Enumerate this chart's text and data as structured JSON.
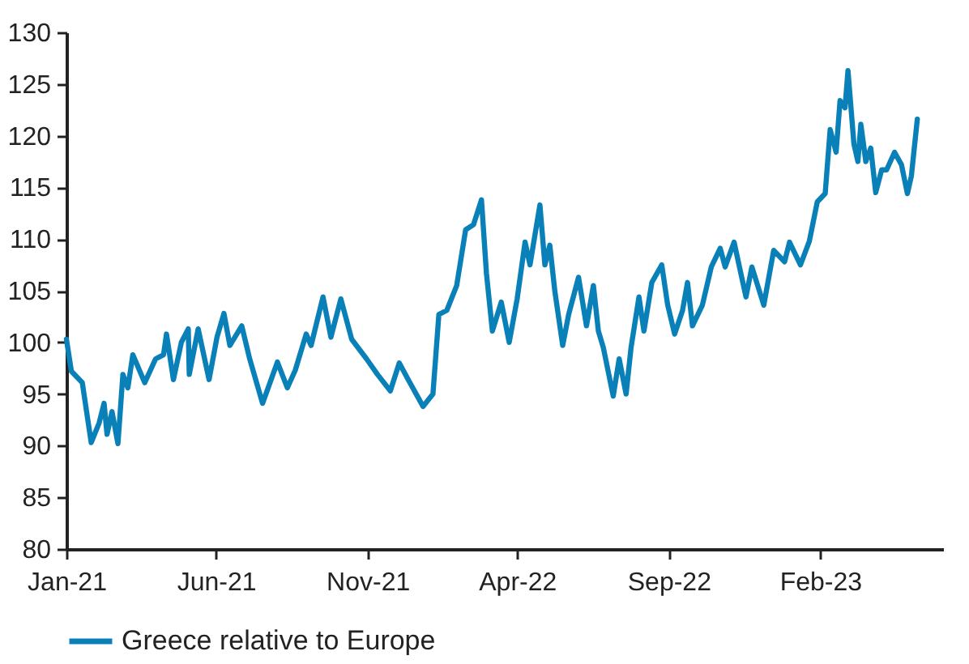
{
  "chart_data": {
    "type": "line",
    "xlim": [
      "2021-01-01",
      "2023-06-05"
    ],
    "ylim": [
      80,
      130
    ],
    "yticks": [
      80,
      85,
      90,
      95,
      100,
      105,
      110,
      115,
      120,
      125,
      130
    ],
    "xticks": [
      {
        "value": "2021-01-01",
        "label": "Jan-21"
      },
      {
        "value": "2021-06-01",
        "label": "Jun-21"
      },
      {
        "value": "2021-11-01",
        "label": "Nov-21"
      },
      {
        "value": "2022-04-01",
        "label": "Apr-22"
      },
      {
        "value": "2022-09-01",
        "label": "Sep-22"
      },
      {
        "value": "2023-02-01",
        "label": "Feb-23"
      }
    ],
    "grid": false,
    "legend": "bottom",
    "line_style": "solid",
    "marker": "none",
    "x": [
      "2021-01-01",
      "2021-01-06",
      "2021-01-17",
      "2021-01-26",
      "2021-02-03",
      "2021-02-08",
      "2021-02-11",
      "2021-02-16",
      "2021-02-22",
      "2021-02-27",
      "2021-03-04",
      "2021-03-09",
      "2021-03-21",
      "2021-04-01",
      "2021-04-09",
      "2021-04-12",
      "2021-04-19",
      "2021-04-27",
      "2021-05-04",
      "2021-05-05",
      "2021-05-14",
      "2021-05-25",
      "2021-06-02",
      "2021-06-09",
      "2021-06-15",
      "2021-06-27",
      "2021-07-05",
      "2021-07-18",
      "2021-08-02",
      "2021-08-12",
      "2021-08-20",
      "2021-08-31",
      "2021-09-05",
      "2021-09-17",
      "2021-09-25",
      "2021-10-05",
      "2021-10-16",
      "2021-10-31",
      "2021-11-11",
      "2021-11-24",
      "2021-12-03",
      "2021-12-12",
      "2021-12-27",
      "2022-01-06",
      "2022-01-12",
      "2022-01-20",
      "2022-01-30",
      "2022-02-08",
      "2022-02-16",
      "2022-02-24",
      "2022-03-01",
      "2022-03-07",
      "2022-03-16",
      "2022-03-24",
      "2022-04-01",
      "2022-04-09",
      "2022-04-14",
      "2022-04-24",
      "2022-04-29",
      "2022-05-04",
      "2022-05-09",
      "2022-05-17",
      "2022-05-23",
      "2022-06-02",
      "2022-06-10",
      "2022-06-17",
      "2022-06-22",
      "2022-06-27",
      "2022-07-07",
      "2022-07-13",
      "2022-07-20",
      "2022-07-25",
      "2022-08-02",
      "2022-08-07",
      "2022-08-15",
      "2022-08-25",
      "2022-08-31",
      "2022-09-07",
      "2022-09-15",
      "2022-09-20",
      "2022-09-25",
      "2022-10-05",
      "2022-10-14",
      "2022-10-23",
      "2022-10-28",
      "2022-11-06",
      "2022-11-18",
      "2022-11-24",
      "2022-12-06",
      "2022-12-16",
      "2022-12-27",
      "2023-01-01",
      "2023-01-12",
      "2023-01-21",
      "2023-01-29",
      "2023-02-06",
      "2023-02-11",
      "2023-02-17",
      "2023-02-21",
      "2023-02-26",
      "2023-03-01",
      "2023-03-07",
      "2023-03-11",
      "2023-03-14",
      "2023-03-19",
      "2023-03-24",
      "2023-03-29",
      "2023-04-04",
      "2023-04-09",
      "2023-04-17",
      "2023-04-24",
      "2023-04-30",
      "2023-05-04",
      "2023-05-10"
    ],
    "series": [
      {
        "name": "Greece relative to Europe",
        "color": "#0a80b8",
        "values": [
          100.3,
          97.2,
          96.1,
          90.3,
          92.2,
          94.1,
          91.1,
          93.3,
          90.2,
          96.9,
          95.6,
          98.8,
          96.1,
          98.4,
          98.8,
          100.8,
          96.4,
          100,
          101.3,
          96.9,
          101.3,
          96.4,
          100.5,
          102.8,
          99.7,
          101.6,
          98.4,
          94.1,
          98.1,
          95.6,
          97.3,
          100.8,
          99.7,
          104.4,
          100.5,
          104.2,
          100.3,
          98.4,
          96.9,
          95.3,
          98,
          96.4,
          93.8,
          95,
          102.7,
          103.1,
          105.5,
          110.9,
          111.4,
          113.8,
          106.7,
          101.1,
          103.9,
          100,
          104.2,
          109.7,
          107.5,
          113.3,
          107.5,
          109.4,
          105,
          99.7,
          102.7,
          106.3,
          101.6,
          105.5,
          101.1,
          99.5,
          94.8,
          98.4,
          95,
          99.5,
          104.4,
          101.1,
          105.8,
          107.5,
          103.6,
          100.8,
          103.1,
          105.8,
          101.6,
          103.6,
          107.3,
          109.1,
          107.3,
          109.7,
          104.4,
          107.3,
          103.6,
          108.9,
          107.8,
          109.7,
          107.5,
          109.8,
          113.6,
          114.4,
          120.6,
          118.4,
          123.4,
          122.7,
          126.3,
          119.2,
          117.5,
          121.1,
          117.5,
          118.8,
          114.5,
          116.7,
          116.7,
          118.4,
          117.2,
          114.4,
          116.1,
          121.6
        ]
      }
    ]
  }
}
